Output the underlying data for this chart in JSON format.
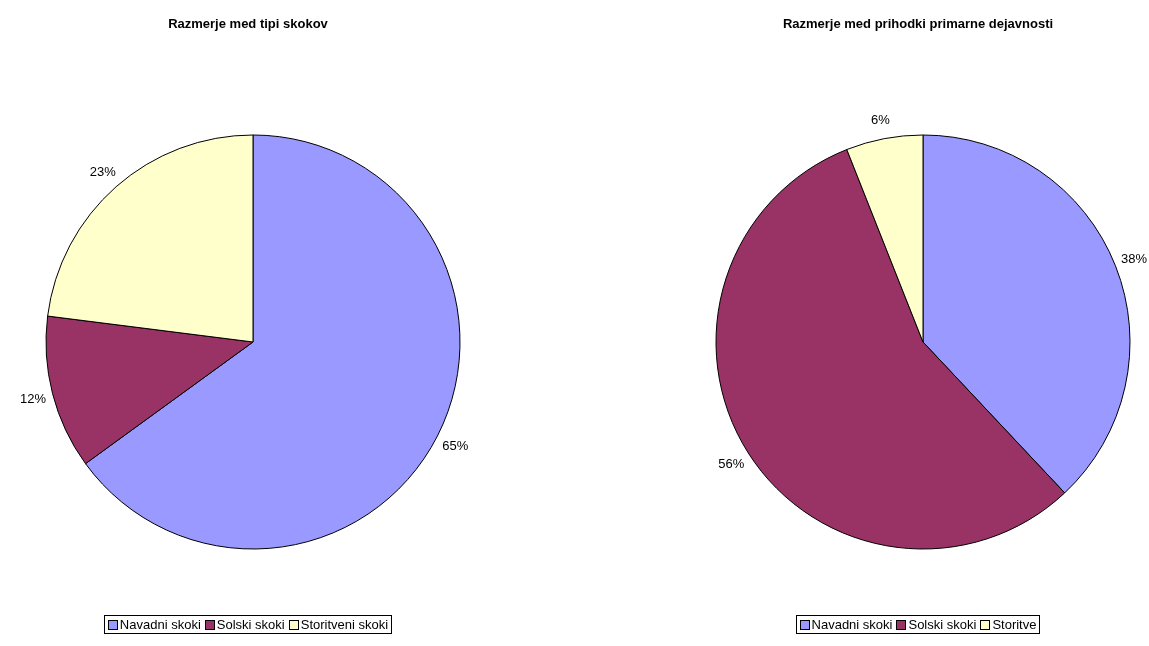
{
  "chart_data": [
    {
      "type": "pie",
      "title": "Razmerje med tipi skokov",
      "categories": [
        "Navadni skoki",
        "Solski skoki",
        "Storitveni skoki"
      ],
      "values": [
        65,
        12,
        23
      ],
      "value_labels": [
        "65%",
        "12%",
        "23%"
      ],
      "colors": [
        "#9999ff",
        "#993366",
        "#ffffcc"
      ],
      "legend": "bottom"
    },
    {
      "type": "pie",
      "title": "Razmerje med prihodki primarne dejavnosti",
      "categories": [
        "Navadni skoki",
        "Solski skoki",
        "Storitve"
      ],
      "values": [
        38,
        56,
        6
      ],
      "value_labels": [
        "38%",
        "56%",
        "6%"
      ],
      "colors": [
        "#9999ff",
        "#993366",
        "#ffffcc"
      ],
      "legend": "bottom"
    }
  ]
}
